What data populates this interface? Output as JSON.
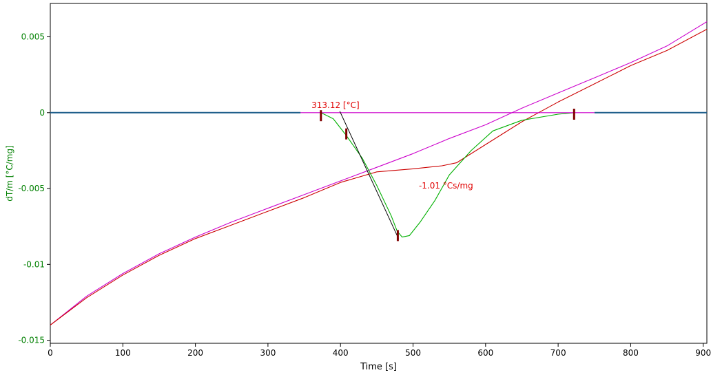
{
  "chart_data": {
    "type": "line",
    "title": "",
    "xlabel": "Time [s]",
    "ylabel": "dT/m  [°C/mg]",
    "xlim": [
      0,
      905
    ],
    "ylim": [
      -0.0152,
      0.0072
    ],
    "x_ticks": [
      0,
      100,
      200,
      300,
      400,
      500,
      600,
      700,
      800,
      900
    ],
    "x_tick_labels": [
      "0",
      "100",
      "200",
      "300",
      "400",
      "500",
      "600",
      "700",
      "800",
      "900"
    ],
    "y_ticks": [
      0.005,
      0,
      -0.005,
      -0.01,
      -0.015
    ],
    "y_tick_labels": [
      "0.005",
      "0",
      "-0.005",
      "-0.01",
      "-0.015"
    ],
    "grid": false,
    "colors": {
      "axis_label": "#008000",
      "tick_label": "#008000",
      "xlabel": "#000000",
      "annotation": "#e00000",
      "marker": "#800000",
      "baseline": "#1f5f8b",
      "magenta": "#cc00cc",
      "red": "#cc0000",
      "green": "#00b000",
      "tangent": "#000000"
    },
    "series": [
      {
        "color": "#cc00cc",
        "x": [
          0,
          50,
          100,
          150,
          200,
          250,
          300,
          350,
          400,
          450,
          500,
          550,
          600,
          650,
          700,
          750,
          800,
          850,
          905
        ],
        "y": [
          -0.014,
          -0.0121,
          -0.0106,
          -0.0093,
          -0.0082,
          -0.0072,
          -0.0063,
          -0.0054,
          -0.0045,
          -0.0036,
          -0.0027,
          -0.0017,
          -0.0008,
          0.0003,
          0.0013,
          0.0023,
          0.0033,
          0.0044,
          0.006
        ]
      },
      {
        "color": "#cc0000",
        "x": [
          0,
          50,
          100,
          150,
          200,
          250,
          300,
          350,
          400,
          450,
          500,
          540,
          560,
          600,
          650,
          700,
          750,
          800,
          850,
          905
        ],
        "y": [
          -0.014,
          -0.0122,
          -0.0107,
          -0.0094,
          -0.0083,
          -0.0074,
          -0.0065,
          -0.0056,
          -0.0046,
          -0.0039,
          -0.0037,
          -0.0035,
          -0.0033,
          -0.0021,
          -0.0006,
          0.0007,
          0.0019,
          0.0031,
          0.0041,
          0.0055
        ]
      },
      {
        "color": "#00b000",
        "x": [
          373,
          390,
          408,
          430,
          450,
          470,
          478,
          485,
          495,
          510,
          530,
          550,
          580,
          610,
          650,
          700,
          722
        ],
        "y": [
          0,
          -0.0004,
          -0.0015,
          -0.003,
          -0.0048,
          -0.0068,
          -0.0078,
          -0.0082,
          -0.0081,
          -0.0072,
          -0.0058,
          -0.0041,
          -0.0025,
          -0.0012,
          -0.0005,
          -0.0001,
          0
        ]
      },
      {
        "color": "#1f5f8b",
        "x": [
          0,
          345
        ],
        "y": [
          0,
          0
        ]
      },
      {
        "color": "#1f5f8b",
        "x": [
          750,
          905
        ],
        "y": [
          0,
          0
        ]
      },
      {
        "color": "#cc00cc",
        "x": [
          345,
          750
        ],
        "y": [
          0,
          0
        ]
      }
    ],
    "tangent": {
      "x": [
        399,
        480
      ],
      "y": [
        0.0001,
        -0.0083
      ]
    },
    "markers": [
      {
        "x": 373,
        "y": -0.0002
      },
      {
        "x": 408,
        "y": -0.0014
      },
      {
        "x": 479,
        "y": -0.0081
      },
      {
        "x": 722,
        "y": -0.0001
      }
    ],
    "annotations": [
      {
        "text": "313.12 [°C]",
        "x": 360,
        "y": 0.0003
      },
      {
        "text": "-1.01 °Cs/mg",
        "x": 508,
        "y": -0.005
      }
    ]
  }
}
